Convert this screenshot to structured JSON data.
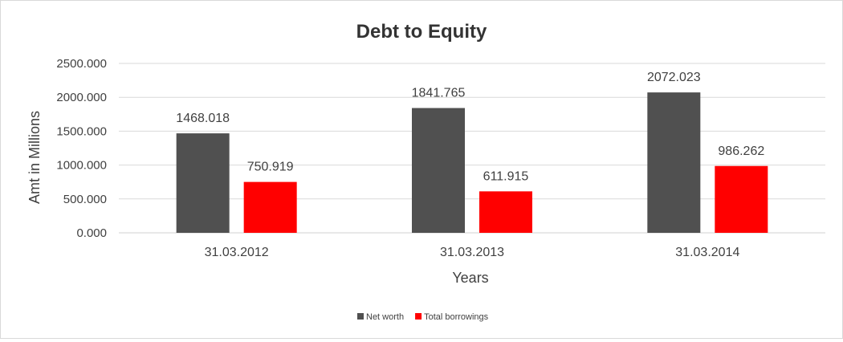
{
  "chart_data": {
    "type": "bar",
    "title": "Debt to Equity",
    "xlabel": "Years",
    "ylabel": "Amt in Millions",
    "categories": [
      "31.03.2012",
      "31.03.2013",
      "31.03.2014"
    ],
    "series": [
      {
        "name": "Net worth",
        "color": "#505050",
        "values": [
          1468.018,
          1841.765,
          2072.023
        ],
        "labels": [
          "1468.018",
          "1841.765",
          "2072.023"
        ]
      },
      {
        "name": "Total borrowings",
        "color": "#ff0000",
        "values": [
          750.919,
          611.915,
          986.262
        ],
        "labels": [
          "750.919",
          "611.915",
          "986.262"
        ]
      }
    ],
    "ylim": [
      0,
      2500
    ],
    "yticks": [
      "0.000",
      "500.000",
      "1000.000",
      "1500.000",
      "2000.000",
      "2500.000"
    ],
    "grid": true,
    "legend_position": "bottom"
  }
}
